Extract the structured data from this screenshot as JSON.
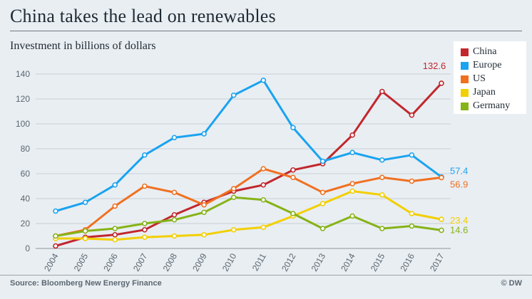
{
  "header": {
    "title": "China takes the lead on renewables",
    "subtitle": "Investment in billions of dollars"
  },
  "footer": {
    "source": "Source: Bloomberg New Energy Finance",
    "credit": "© DW"
  },
  "colors": {
    "China": "#c1272d",
    "Europe": "#1aa3f0",
    "US": "#f07020",
    "Japan": "#f2cf00",
    "Germany": "#86b317",
    "axis": "#5b6770",
    "grid": "#c8d0d6"
  },
  "chart_data": {
    "type": "line",
    "x": [
      "2004",
      "2005",
      "2006",
      "2007",
      "2008",
      "2009",
      "2010",
      "2011",
      "2012",
      "2013",
      "2014",
      "2015",
      "2016",
      "2017"
    ],
    "ylim": [
      0,
      140
    ],
    "yticks": [
      0,
      20,
      40,
      60,
      80,
      100,
      120,
      140
    ],
    "grid": true,
    "legend_position": "top-right",
    "series": [
      {
        "name": "China",
        "values": [
          2,
          9,
          11,
          15,
          27,
          37,
          46,
          51,
          63,
          68,
          91,
          126,
          107,
          132.6
        ],
        "end_label": "132.6"
      },
      {
        "name": "Europe",
        "values": [
          30,
          37,
          51,
          75,
          89,
          92,
          123,
          135,
          97,
          70,
          77,
          71,
          75,
          57.4
        ],
        "end_label": "57.4"
      },
      {
        "name": "US",
        "values": [
          10,
          15,
          34,
          50,
          45,
          35,
          48,
          64,
          57,
          45,
          52,
          57,
          54,
          56.9
        ],
        "end_label": "56.9"
      },
      {
        "name": "Japan",
        "values": [
          8,
          8,
          7,
          9,
          10,
          11,
          15,
          17,
          26,
          36,
          46,
          43,
          28,
          23.4
        ],
        "end_label": "23.4"
      },
      {
        "name": "Germany",
        "values": [
          10,
          14,
          16,
          20,
          23,
          29,
          41,
          39,
          28,
          16,
          26,
          16,
          18,
          14.6
        ],
        "end_label": "14.6"
      }
    ]
  }
}
